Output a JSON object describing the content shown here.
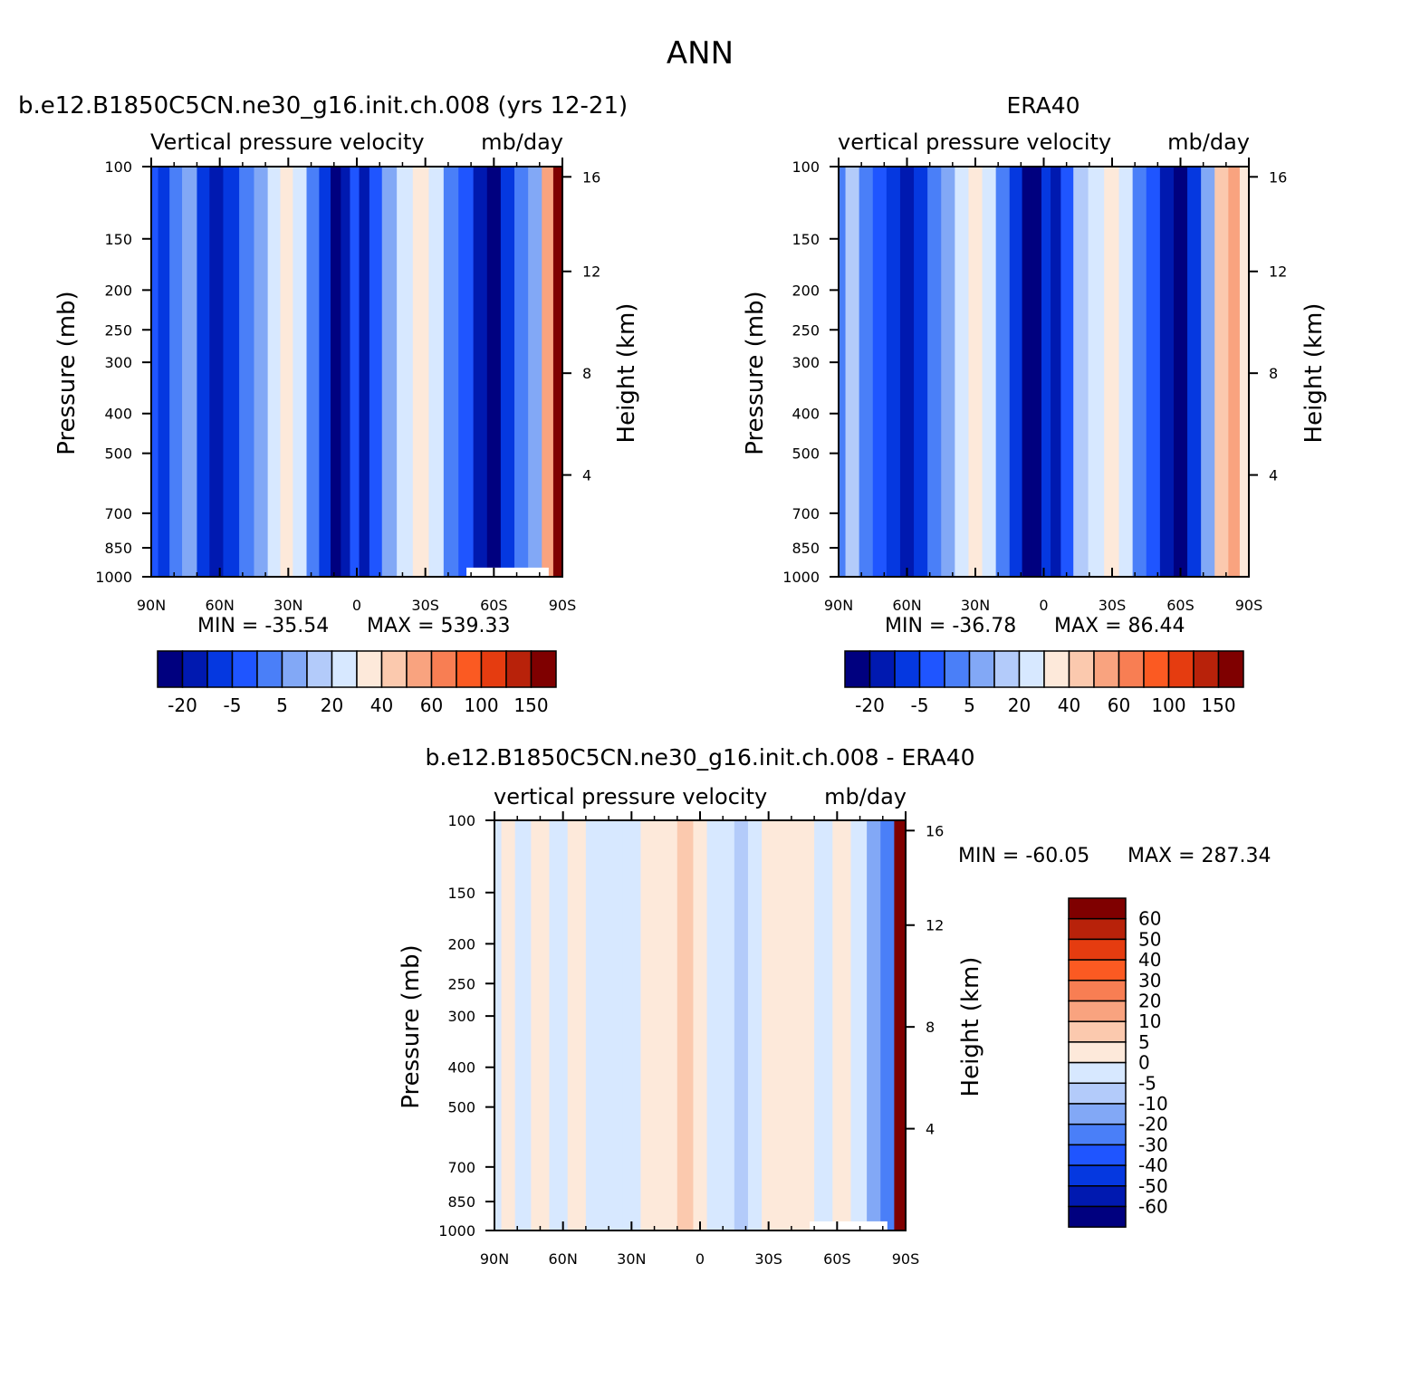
{
  "figure": {
    "title": "ANN",
    "colors": {
      "palette": [
        "#00007f",
        "#0019b0",
        "#0538e0",
        "#1f55ff",
        "#4a7ff8",
        "#82a8f6",
        "#b3cbfa",
        "#d7e8ff",
        "#fde9da",
        "#fbc9ae",
        "#f9a37f",
        "#f87e53",
        "#fb5a22",
        "#e53c10",
        "#b8220a",
        "#7f0000"
      ],
      "diff_palette": [
        "#00007f",
        "#0019b0",
        "#0538e0",
        "#1f55ff",
        "#4a7ff8",
        "#82a8f6",
        "#b3cbfa",
        "#d7e8ff",
        "#fde9da",
        "#fbc9ae",
        "#f9a37f",
        "#f87e53",
        "#fb5a22",
        "#e53c10",
        "#b8220a",
        "#7f0000"
      ]
    }
  },
  "chart_data": [
    {
      "type": "heatmap",
      "id": "model",
      "title_left": "b.e12.B1850C5CN.ne30_g16.init.ch.008 (yrs 12-21)",
      "title_center": "",
      "subtitle_left": "Vertical pressure velocity",
      "subtitle_right": "mb/day",
      "xlabel": "",
      "ylabel": "Pressure (mb)",
      "y2label": "Height (km)",
      "x_tick_labels": [
        "90N",
        "60N",
        "30N",
        "0",
        "30S",
        "60S",
        "90S"
      ],
      "x_tick_values": [
        90,
        60,
        30,
        0,
        -30,
        -60,
        -90
      ],
      "xlim": [
        90,
        -90
      ],
      "y_tick_labels": [
        "100",
        "150",
        "200",
        "250",
        "300",
        "400",
        "500",
        "700",
        "850",
        "1000"
      ],
      "y_tick_values": [
        100,
        150,
        200,
        250,
        300,
        400,
        500,
        700,
        850,
        1000
      ],
      "ylim": [
        1000,
        100
      ],
      "yscale": "log",
      "y2_tick_labels": [
        "16",
        "12",
        "8",
        "4"
      ],
      "y2_tick_values": [
        16,
        12,
        8,
        4
      ],
      "min_text": "MIN = -35.54",
      "max_text": "MAX = 539.33",
      "colorbar": {
        "orientation": "horizontal",
        "labels": [
          "-20",
          "-5",
          "5",
          "20",
          "40",
          "60",
          "100",
          "150"
        ],
        "levels": [
          -25,
          -20,
          -15,
          -10,
          -5,
          0,
          5,
          10,
          20,
          30,
          40,
          50,
          60,
          80,
          100,
          120,
          150
        ]
      },
      "bands": [
        {
          "lat": 90,
          "v": -8
        },
        {
          "lat": 84,
          "v": -12
        },
        {
          "lat": 80,
          "v": -5
        },
        {
          "lat": 73,
          "v": 2
        },
        {
          "lat": 67,
          "v": -12
        },
        {
          "lat": 62,
          "v": -18
        },
        {
          "lat": 55,
          "v": -12
        },
        {
          "lat": 48,
          "v": -5
        },
        {
          "lat": 42,
          "v": 2
        },
        {
          "lat": 36,
          "v": 10
        },
        {
          "lat": 31,
          "v": 20
        },
        {
          "lat": 25,
          "v": 12
        },
        {
          "lat": 19,
          "v": -3
        },
        {
          "lat": 14,
          "v": -15
        },
        {
          "lat": 9,
          "v": -28
        },
        {
          "lat": 5,
          "v": -20
        },
        {
          "lat": 1,
          "v": -10
        },
        {
          "lat": -3,
          "v": -17
        },
        {
          "lat": -8,
          "v": -10
        },
        {
          "lat": -14,
          "v": 2
        },
        {
          "lat": -21,
          "v": 14
        },
        {
          "lat": -28,
          "v": 22
        },
        {
          "lat": -35,
          "v": 12
        },
        {
          "lat": -41,
          "v": -3
        },
        {
          "lat": -48,
          "v": -10
        },
        {
          "lat": -54,
          "v": -17
        },
        {
          "lat": -60,
          "v": -22
        },
        {
          "lat": -66,
          "v": -15
        },
        {
          "lat": -72,
          "v": -5
        },
        {
          "lat": -78,
          "v": 2
        },
        {
          "lat": -84,
          "v": 40
        },
        {
          "lat": -88,
          "v": 150
        }
      ],
      "missing_region": {
        "lat_from": -48,
        "lat_to": -84,
        "p_from": 950,
        "p_to": 1000
      }
    },
    {
      "type": "heatmap",
      "id": "obs",
      "title_left": "",
      "title_center": "ERA40",
      "subtitle_left": "vertical pressure velocity",
      "subtitle_right": "mb/day",
      "xlabel": "",
      "ylabel": "Pressure (mb)",
      "y2label": "Height (km)",
      "x_tick_labels": [
        "90N",
        "60N",
        "30N",
        "0",
        "30S",
        "60S",
        "90S"
      ],
      "x_tick_values": [
        90,
        60,
        30,
        0,
        -30,
        -60,
        -90
      ],
      "xlim": [
        90,
        -90
      ],
      "y_tick_labels": [
        "100",
        "150",
        "200",
        "250",
        "300",
        "400",
        "500",
        "700",
        "850",
        "1000"
      ],
      "y_tick_values": [
        100,
        150,
        200,
        250,
        300,
        400,
        500,
        700,
        850,
        1000
      ],
      "ylim": [
        1000,
        100
      ],
      "yscale": "log",
      "y2_tick_labels": [
        "16",
        "12",
        "8",
        "4"
      ],
      "y2_tick_values": [
        16,
        12,
        8,
        4
      ],
      "min_text": "MIN = -36.78",
      "max_text": "MAX = 86.44",
      "colorbar": {
        "orientation": "horizontal",
        "labels": [
          "-20",
          "-5",
          "5",
          "20",
          "40",
          "60",
          "100",
          "150"
        ],
        "levels": [
          -25,
          -20,
          -15,
          -10,
          -5,
          0,
          5,
          10,
          20,
          30,
          40,
          50,
          60,
          80,
          100,
          120,
          150
        ]
      },
      "bands": [
        {
          "lat": 90,
          "v": -5
        },
        {
          "lat": 84,
          "v": 5
        },
        {
          "lat": 78,
          "v": -3
        },
        {
          "lat": 72,
          "v": -10
        },
        {
          "lat": 66,
          "v": -15
        },
        {
          "lat": 60,
          "v": -20
        },
        {
          "lat": 54,
          "v": -12
        },
        {
          "lat": 48,
          "v": -5
        },
        {
          "lat": 42,
          "v": 3
        },
        {
          "lat": 36,
          "v": 12
        },
        {
          "lat": 30,
          "v": 22
        },
        {
          "lat": 24,
          "v": 12
        },
        {
          "lat": 18,
          "v": -3
        },
        {
          "lat": 12,
          "v": -15
        },
        {
          "lat": 7,
          "v": -30
        },
        {
          "lat": 3,
          "v": -22
        },
        {
          "lat": -1,
          "v": -12
        },
        {
          "lat": -5,
          "v": -18
        },
        {
          "lat": -10,
          "v": -8
        },
        {
          "lat": -16,
          "v": 5
        },
        {
          "lat": -23,
          "v": 15
        },
        {
          "lat": -30,
          "v": 22
        },
        {
          "lat": -36,
          "v": 12
        },
        {
          "lat": -42,
          "v": -3
        },
        {
          "lat": -48,
          "v": -10
        },
        {
          "lat": -54,
          "v": -16
        },
        {
          "lat": -60,
          "v": -22
        },
        {
          "lat": -66,
          "v": -12
        },
        {
          "lat": -72,
          "v": 2
        },
        {
          "lat": -78,
          "v": 30
        },
        {
          "lat": -84,
          "v": 45
        },
        {
          "lat": -88,
          "v": 20
        }
      ]
    },
    {
      "type": "heatmap",
      "id": "diff",
      "title_left": "",
      "title_center": "b.e12.B1850C5CN.ne30_g16.init.ch.008 - ERA40",
      "subtitle_left": "vertical pressure velocity",
      "subtitle_right": "mb/day",
      "xlabel": "",
      "ylabel": "Pressure (mb)",
      "y2label": "Height (km)",
      "x_tick_labels": [
        "90N",
        "60N",
        "30N",
        "0",
        "30S",
        "60S",
        "90S"
      ],
      "x_tick_values": [
        90,
        60,
        30,
        0,
        -30,
        -60,
        -90
      ],
      "xlim": [
        90,
        -90
      ],
      "y_tick_labels": [
        "100",
        "150",
        "200",
        "250",
        "300",
        "400",
        "500",
        "700",
        "850",
        "1000"
      ],
      "y_tick_values": [
        100,
        150,
        200,
        250,
        300,
        400,
        500,
        700,
        850,
        1000
      ],
      "ylim": [
        1000,
        100
      ],
      "yscale": "log",
      "y2_tick_labels": [
        "16",
        "12",
        "8",
        "4"
      ],
      "y2_tick_values": [
        16,
        12,
        8,
        4
      ],
      "min_text": "MIN = -60.05",
      "max_text": "MAX = 287.34",
      "colorbar": {
        "orientation": "vertical",
        "labels": [
          "60",
          "50",
          "40",
          "30",
          "20",
          "10",
          "5",
          "0",
          "-5",
          "-10",
          "-20",
          "-30",
          "-40",
          "-50",
          "-60"
        ],
        "levels": [
          -70,
          -60,
          -50,
          -40,
          -30,
          -20,
          -10,
          -5,
          0,
          5,
          10,
          20,
          30,
          40,
          50,
          60,
          70
        ]
      },
      "bands": [
        {
          "lat": 90,
          "v": -2
        },
        {
          "lat": 84,
          "v": 2
        },
        {
          "lat": 78,
          "v": -2
        },
        {
          "lat": 70,
          "v": 2
        },
        {
          "lat": 62,
          "v": -2
        },
        {
          "lat": 54,
          "v": 2
        },
        {
          "lat": 46,
          "v": -2
        },
        {
          "lat": 38,
          "v": -2
        },
        {
          "lat": 30,
          "v": -2
        },
        {
          "lat": 22,
          "v": 2
        },
        {
          "lat": 14,
          "v": 2
        },
        {
          "lat": 6,
          "v": 7
        },
        {
          "lat": 0,
          "v": 2
        },
        {
          "lat": -6,
          "v": -2
        },
        {
          "lat": -12,
          "v": -2
        },
        {
          "lat": -18,
          "v": -7
        },
        {
          "lat": -24,
          "v": -2
        },
        {
          "lat": -30,
          "v": 2
        },
        {
          "lat": -38,
          "v": 2
        },
        {
          "lat": -46,
          "v": 2
        },
        {
          "lat": -54,
          "v": -2
        },
        {
          "lat": -62,
          "v": 2
        },
        {
          "lat": -70,
          "v": -2
        },
        {
          "lat": -76,
          "v": -12
        },
        {
          "lat": -82,
          "v": -25
        },
        {
          "lat": -88,
          "v": 65
        }
      ],
      "missing_region": {
        "lat_from": -48,
        "lat_to": -82,
        "p_from": 950,
        "p_to": 1000
      }
    }
  ]
}
